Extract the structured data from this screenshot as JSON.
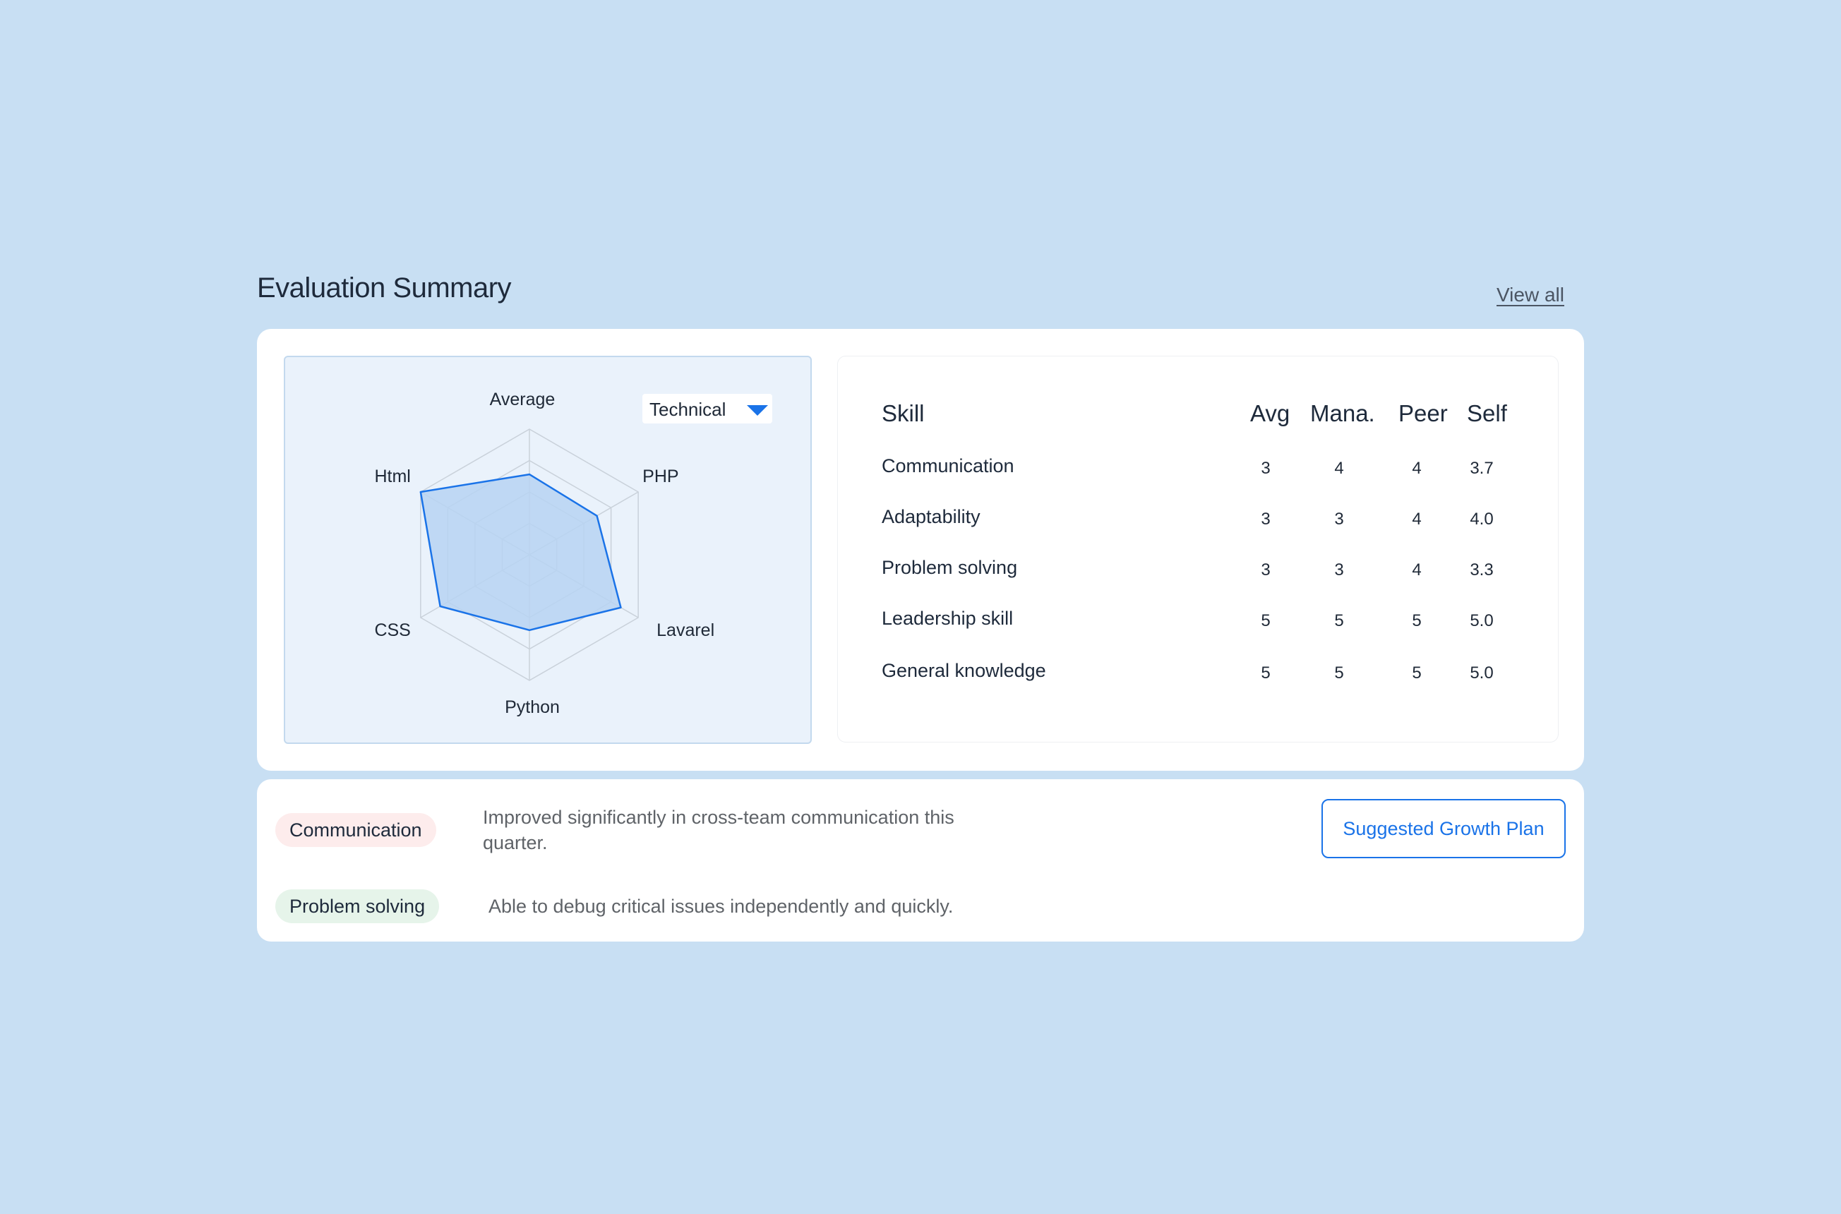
{
  "header": {
    "title": "Evaluation Summary",
    "view_all_label": "View all"
  },
  "radar": {
    "dropdown_value": "Technical",
    "accent_color": "#1a73e8",
    "fill_color": "#b7d3f2",
    "chart_data": {
      "type": "radar",
      "axes": [
        "Average",
        "PHP",
        "Lavarel",
        "Python",
        "CSS",
        "Html"
      ],
      "scale_max": 5,
      "grid_levels": 4,
      "values": [
        3.2,
        3.1,
        4.2,
        3.0,
        4.1,
        5.0
      ]
    }
  },
  "skills_table": {
    "headers": {
      "skill": "Skill",
      "avg": "Avg",
      "manager": "Mana.",
      "peer": "Peer",
      "self": "Self"
    },
    "rows": [
      {
        "skill": "Communication",
        "avg": "3",
        "manager": "4",
        "peer": "4",
        "self": "3.7"
      },
      {
        "skill": "Adaptability",
        "avg": "3",
        "manager": "3",
        "peer": "4",
        "self": "4.0"
      },
      {
        "skill": "Problem solving",
        "avg": "3",
        "manager": "3",
        "peer": "4",
        "self": "3.3"
      },
      {
        "skill": "Leadership skill",
        "avg": "5",
        "manager": "5",
        "peer": "5",
        "self": "5.0"
      },
      {
        "skill": "General knowledge",
        "avg": "5",
        "manager": "5",
        "peer": "5",
        "self": "5.0"
      }
    ]
  },
  "notes": {
    "items": [
      {
        "tag": "Communication",
        "tag_color": "#fdecec",
        "text": "Improved significantly in cross-team communication this quarter."
      },
      {
        "tag": "Problem solving",
        "tag_color": "#e6f4ea",
        "text": "Able to debug critical issues independently and quickly."
      }
    ],
    "growth_button_label": "Suggested Growth Plan"
  }
}
